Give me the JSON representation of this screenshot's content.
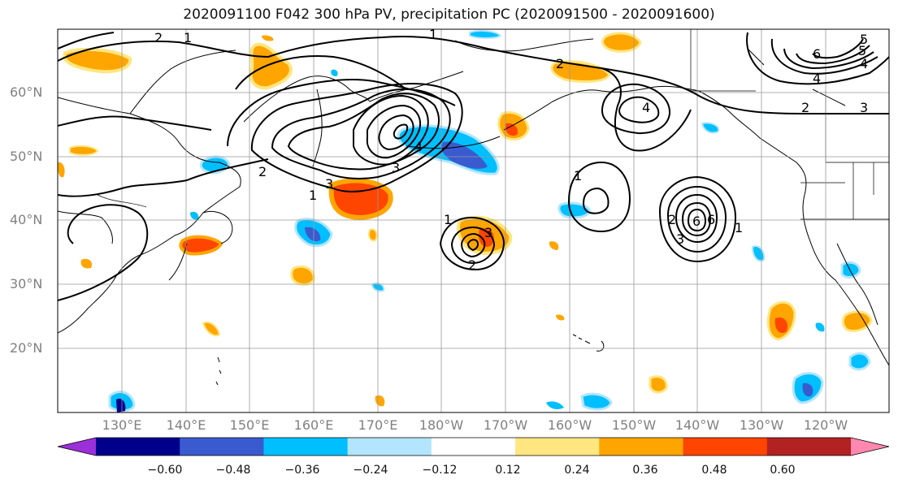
{
  "title": "2020091100 F042 300 hPa PV, precipitation PC (2020091500 - 2020091600)",
  "lat_labels": [
    "60°N",
    "50°N",
    "40°N",
    "30°N",
    "20°N"
  ],
  "lon_labels": [
    "130°E",
    "140°E",
    "150°E",
    "160°E",
    "170°E",
    "180°W",
    "170°W",
    "160°W",
    "150°W",
    "140°W",
    "130°W",
    "120°W"
  ],
  "colorbar": {
    "ticks": [
      "−0.60",
      "−0.48",
      "−0.36",
      "−0.24",
      "−0.12",
      "0.12",
      "0.24",
      "0.36",
      "0.48",
      "0.60"
    ],
    "colors": [
      "#9b30d9",
      "#00008b",
      "#3a5bcf",
      "#00bfff",
      "#b3e5ff",
      "#ffffff",
      "#ffe680",
      "#ffa500",
      "#ff4500",
      "#b22222",
      "#ff88b0"
    ]
  },
  "contour_labels": [
    "1",
    "2",
    "1",
    "2",
    "1",
    "3",
    "3",
    "4",
    "2",
    "3",
    "4",
    "5",
    "6",
    "1",
    "4",
    "2",
    "3",
    "6",
    "1",
    "2",
    "3",
    "4",
    "5",
    "6",
    "1",
    "2"
  ]
}
